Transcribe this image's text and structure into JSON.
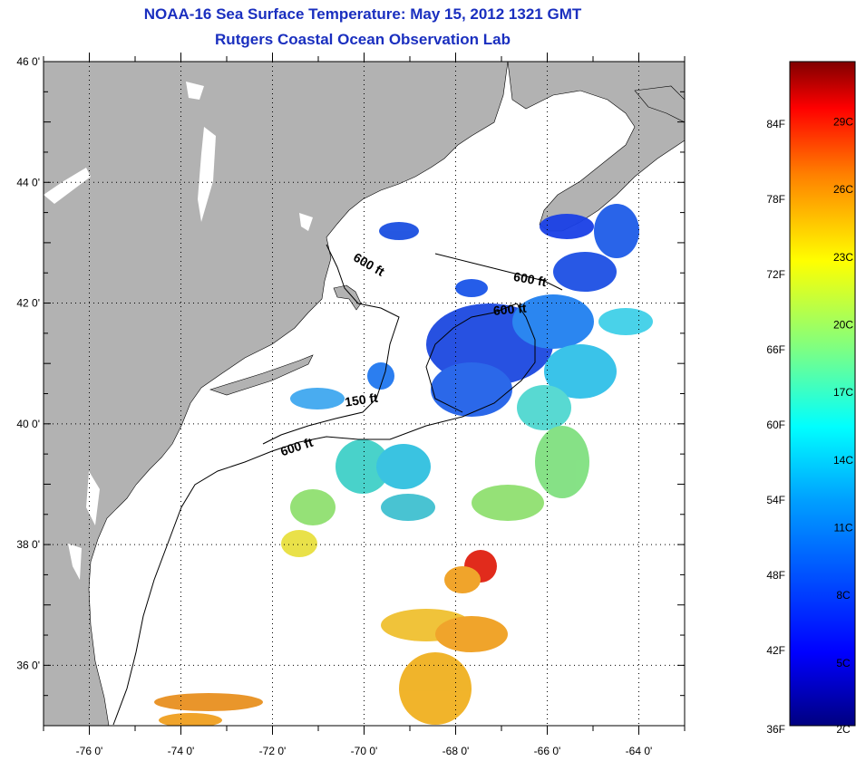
{
  "header": {
    "title": "NOAA-16 Sea Surface Temperature:  May 15, 2012 1321 GMT",
    "subtitle": "Rutgers Coastal Ocean Observation Lab"
  },
  "map": {
    "lat_range": [
      35,
      46
    ],
    "lon_range": [
      -77,
      -63
    ],
    "lat_ticks": [
      "46 0'",
      "44 0'",
      "42 0'",
      "40 0'",
      "38 0'",
      "36 0'"
    ],
    "lon_ticks": [
      "-76 0'",
      "-74 0'",
      "-72 0'",
      "-70 0'",
      "-68 0'",
      "-66 0'",
      "-64 0'"
    ],
    "grid": "dotted",
    "land_color": "#b2b2b2",
    "contour_labels": [
      "600 ft",
      "600 ft",
      "600 ft",
      "150 ft",
      "600 ft"
    ]
  },
  "colorbar": {
    "fahrenheit_labels": [
      "84F",
      "78F",
      "72F",
      "66F",
      "60F",
      "54F",
      "48F",
      "42F",
      "36F"
    ],
    "celsius_labels": [
      "29C",
      "26C",
      "23C",
      "20C",
      "17C",
      "14C",
      "11C",
      "8C",
      "5C",
      "2C"
    ],
    "colors": [
      "#800000",
      "#ff0000",
      "#ff8000",
      "#ffff00",
      "#80ff80",
      "#00ffff",
      "#0080ff",
      "#0000ff",
      "#000080"
    ]
  }
}
